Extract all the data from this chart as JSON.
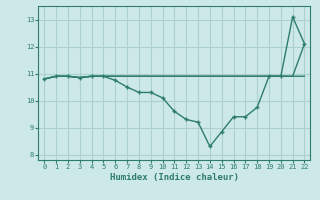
{
  "x": [
    0,
    1,
    2,
    3,
    4,
    5,
    6,
    7,
    8,
    9,
    10,
    11,
    12,
    13,
    14,
    15,
    16,
    17,
    18,
    19,
    20,
    21,
    22
  ],
  "y_curve": [
    10.8,
    10.9,
    10.9,
    10.85,
    10.9,
    10.9,
    10.75,
    10.5,
    10.3,
    10.3,
    10.1,
    9.6,
    9.3,
    9.2,
    8.3,
    8.85,
    9.4,
    9.4,
    9.75,
    10.9,
    10.9,
    13.1,
    12.1
  ],
  "y_flat": [
    10.8,
    10.9,
    10.9,
    10.85,
    10.9,
    10.9,
    10.9,
    10.9,
    10.9,
    10.9,
    10.9,
    10.9,
    10.9,
    10.9,
    10.9,
    10.9,
    10.9,
    10.9,
    10.9,
    10.9,
    10.9,
    10.9,
    10.9
  ],
  "y_diag": [
    10.8,
    10.9,
    10.9,
    10.85,
    10.9,
    10.9,
    10.9,
    10.9,
    10.9,
    10.9,
    10.9,
    10.9,
    10.9,
    10.9,
    10.9,
    10.9,
    10.9,
    10.9,
    10.9,
    10.9,
    10.9,
    10.9,
    12.1
  ],
  "line_color": "#2E7D6B",
  "bg_color": "#cce8e8",
  "grid_color": "#aad0d0",
  "xlabel": "Humidex (Indice chaleur)",
  "ylim": [
    7.8,
    13.5
  ],
  "xlim": [
    -0.5,
    22.5
  ],
  "yticks": [
    8,
    9,
    10,
    11,
    12,
    13
  ],
  "xticks": [
    0,
    1,
    2,
    3,
    4,
    5,
    6,
    7,
    8,
    9,
    10,
    11,
    12,
    13,
    14,
    15,
    16,
    17,
    18,
    19,
    20,
    21,
    22
  ]
}
